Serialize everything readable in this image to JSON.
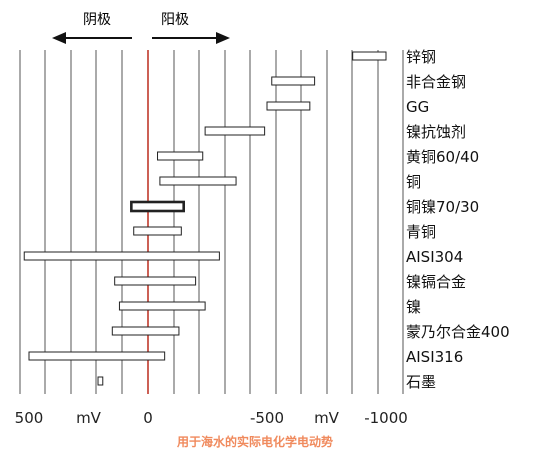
{
  "chart_data": {
    "type": "bar",
    "title": "",
    "caption": "用于海水的实际电化学电动势",
    "header": {
      "cathode_label": "阴极",
      "anode_label": "阳极"
    },
    "x_ticks": [
      {
        "label": "500",
        "value": 500
      },
      {
        "label": "mV",
        "value": 250
      },
      {
        "label": "0",
        "value": 0
      },
      {
        "label": "-500",
        "value": -500
      },
      {
        "label": "mV",
        "value": -750
      },
      {
        "label": "-1000",
        "value": -1000
      }
    ],
    "xlim": [
      500,
      -1000
    ],
    "zero_line_color": "#c0392b",
    "grid": true,
    "materials": [
      {
        "name": "锌钢",
        "low": -1000,
        "high": -860
      },
      {
        "name": "非合金钢",
        "low": -700,
        "high": -520
      },
      {
        "name": "GG",
        "low": -680,
        "high": -500
      },
      {
        "name": "镍抗蚀剂",
        "low": -490,
        "high": -240
      },
      {
        "name": "黄铜60/40",
        "low": -230,
        "high": -40
      },
      {
        "name": "铜",
        "low": -370,
        "high": -50
      },
      {
        "name": "铜镍70/30",
        "low": -150,
        "high": 70,
        "emphasis": true
      },
      {
        "name": "青铜",
        "low": -140,
        "high": 60
      },
      {
        "name": "AISI304",
        "low": -300,
        "high": 520
      },
      {
        "name": "镍镉合金",
        "low": -200,
        "high": 140
      },
      {
        "name": "镍",
        "low": -240,
        "high": 120
      },
      {
        "name": "蒙乃尔合金400",
        "low": -130,
        "high": 150
      },
      {
        "name": "AISI316",
        "low": -70,
        "high": 500
      },
      {
        "name": "石墨",
        "low": 190,
        "high": 210
      }
    ]
  }
}
